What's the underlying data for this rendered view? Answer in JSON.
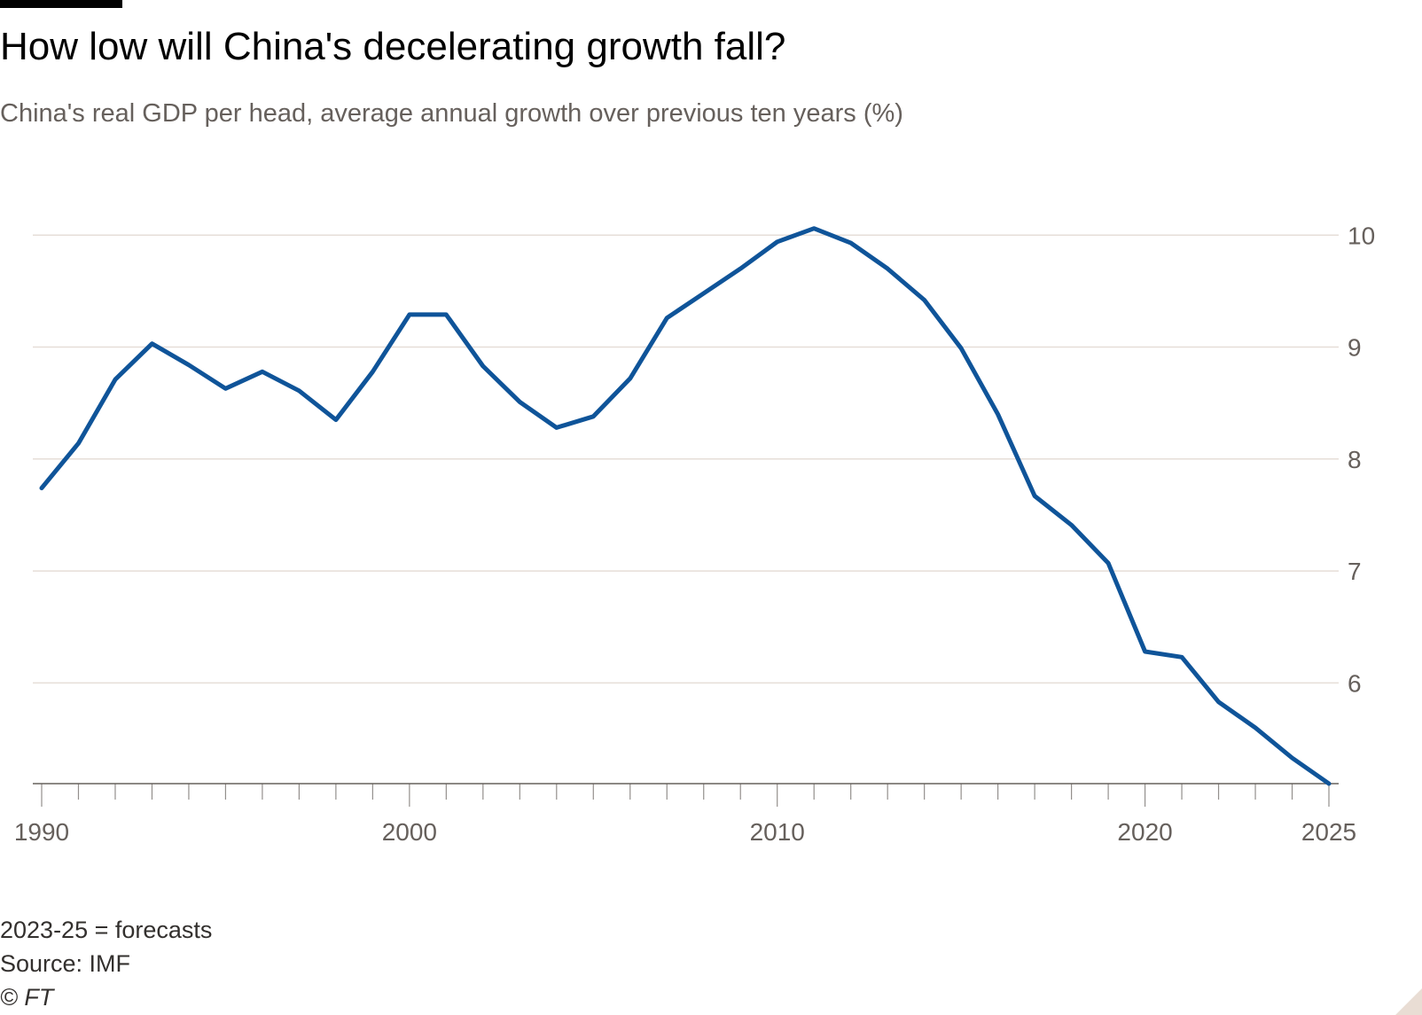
{
  "header": {
    "title": "How low will China's decelerating growth fall?",
    "subtitle": "China's real GDP per head, average annual growth over previous ten years (%)"
  },
  "footer": {
    "note": "2023-25 = forecasts",
    "source": "Source: IMF",
    "copyright": "© FT"
  },
  "colors": {
    "line": "#0f5499",
    "grid": "#e6ded8",
    "axis": "#66605c"
  },
  "chart_data": {
    "type": "line",
    "title": "How low will China's decelerating growth fall?",
    "subtitle": "China's real GDP per head, average annual growth over previous ten years (%)",
    "xlabel": "",
    "ylabel": "",
    "xlim": [
      1990,
      2025
    ],
    "ylim": [
      5.1,
      10.2
    ],
    "x_ticks": [
      1990,
      2000,
      2010,
      2020,
      2025
    ],
    "y_ticks": [
      6,
      7,
      8,
      9,
      10
    ],
    "y_axis_position": "right",
    "grid": "horizontal",
    "series": [
      {
        "name": "",
        "x": [
          1990,
          1991,
          1992,
          1993,
          1994,
          1995,
          1996,
          1997,
          1998,
          1999,
          2000,
          2001,
          2002,
          2003,
          2004,
          2005,
          2006,
          2007,
          2008,
          2009,
          2010,
          2011,
          2012,
          2013,
          2014,
          2015,
          2016,
          2017,
          2018,
          2019,
          2020,
          2021,
          2022,
          2023,
          2024,
          2025
        ],
        "values": [
          7.74,
          8.14,
          8.71,
          9.03,
          8.84,
          8.63,
          8.78,
          8.61,
          8.35,
          8.78,
          9.29,
          9.29,
          8.83,
          8.51,
          8.28,
          8.38,
          8.72,
          9.26,
          9.48,
          9.7,
          9.94,
          10.06,
          9.93,
          9.7,
          9.42,
          8.99,
          8.4,
          7.67,
          7.41,
          7.07,
          6.28,
          6.23,
          5.83,
          5.6,
          5.33,
          5.1
        ]
      }
    ]
  }
}
